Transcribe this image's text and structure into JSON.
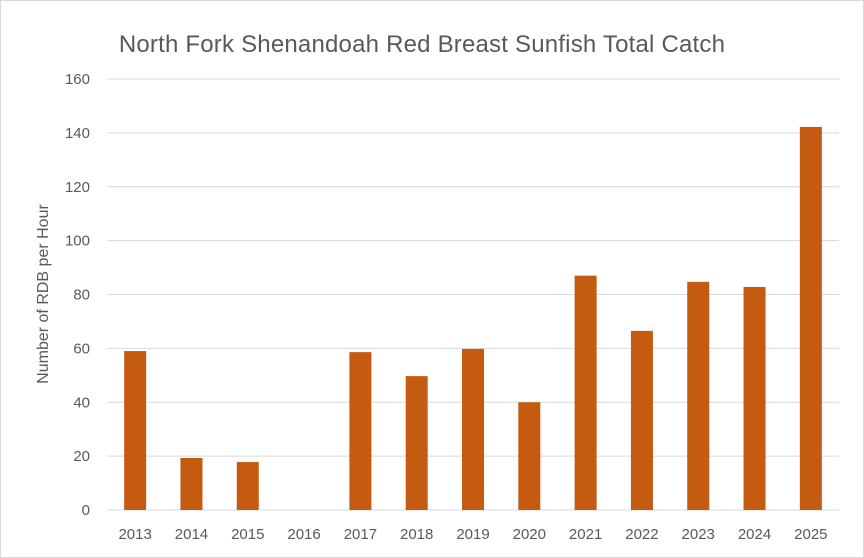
{
  "chart_data": {
    "type": "bar",
    "title": "North Fork Shenandoah Red Breast Sunfish Total Catch",
    "xlabel": "",
    "ylabel": "Number of RDB per Hour",
    "categories": [
      "2013",
      "2014",
      "2015",
      "2016",
      "2017",
      "2018",
      "2019",
      "2020",
      "2021",
      "2022",
      "2023",
      "2024",
      "2025"
    ],
    "values": [
      59,
      19.3,
      17.8,
      0,
      58.6,
      49.7,
      59.8,
      40,
      87,
      66.5,
      84.7,
      82.8,
      142.2
    ],
    "ylim": [
      0,
      160
    ],
    "yticks": [
      "0",
      "20",
      "40",
      "60",
      "80",
      "100",
      "120",
      "140",
      "160"
    ],
    "grid": true,
    "legend": "none",
    "bar_color": "#c55a11",
    "grid_color": "#d9d9d9",
    "text_color": "#595959"
  }
}
